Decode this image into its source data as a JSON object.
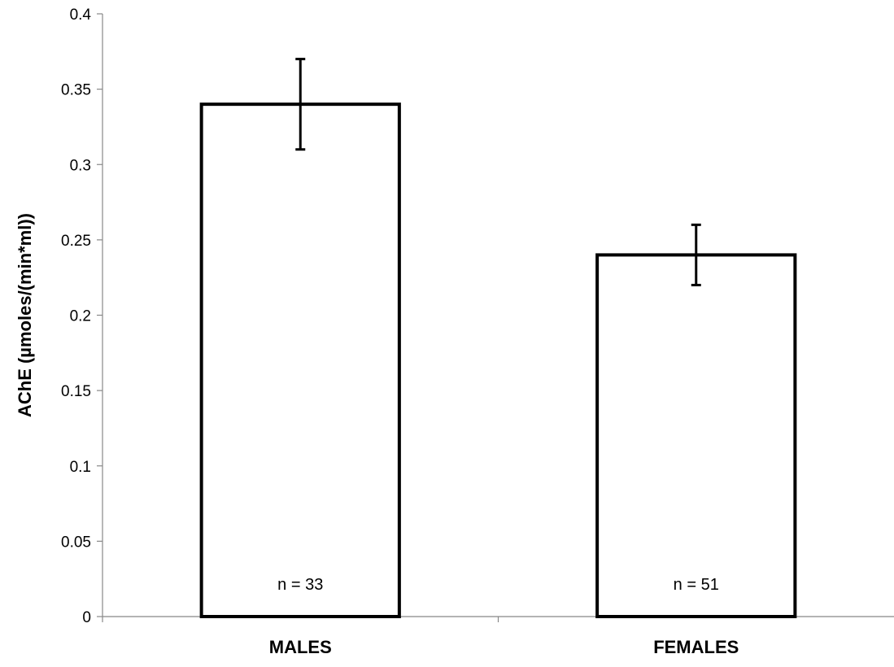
{
  "chart_data": {
    "type": "bar",
    "categories": [
      "MALES",
      "FEMALES"
    ],
    "values": [
      0.34,
      0.24
    ],
    "error": [
      0.03,
      0.02
    ],
    "annotations": [
      "n = 33",
      "n = 51"
    ],
    "ylabel": "AChE (µmoles/(min*ml))",
    "xlabel": "",
    "ylim": [
      0,
      0.4
    ],
    "yticks": [
      0,
      0.05,
      0.1,
      0.15,
      0.2,
      0.25,
      0.3,
      0.35,
      0.4
    ],
    "ytick_labels": [
      "0",
      "0.05",
      "0.1",
      "0.15",
      "0.2",
      "0.25",
      "0.3",
      "0.35",
      "0.4"
    ],
    "grid": false,
    "bar_fill": "#ffffff",
    "bar_stroke": "#000000"
  }
}
